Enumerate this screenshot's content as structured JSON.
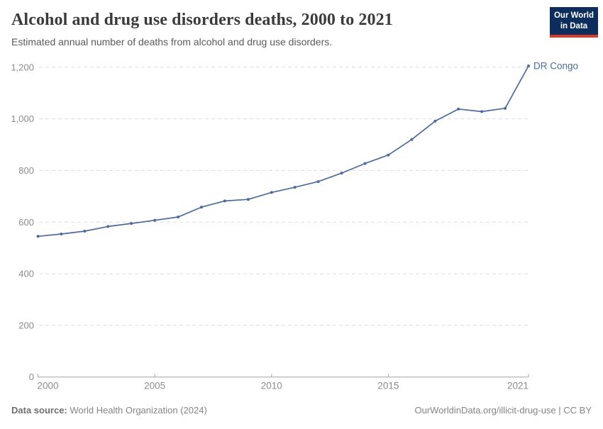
{
  "header": {
    "title": "Alcohol and drug use disorders deaths, 2000 to 2021",
    "subtitle": "Estimated annual number of deaths from alcohol and drug use disorders."
  },
  "logo": {
    "line1": "Our World",
    "line2": "in Data",
    "bg_color": "#0d2e5c",
    "bar_color": "#d93b2b"
  },
  "chart_data": {
    "type": "line",
    "title": "Alcohol and drug use disorders deaths, 2000 to 2021",
    "xlabel": "",
    "ylabel": "",
    "x": [
      2000,
      2001,
      2002,
      2003,
      2004,
      2005,
      2006,
      2007,
      2008,
      2009,
      2010,
      2011,
      2012,
      2013,
      2014,
      2015,
      2016,
      2017,
      2018,
      2019,
      2020,
      2021
    ],
    "series": [
      {
        "name": "DR Congo",
        "color": "#4C6A9C",
        "values": [
          545,
          554,
          565,
          583,
          595,
          607,
          620,
          658,
          682,
          688,
          715,
          735,
          757,
          790,
          827,
          860,
          920,
          991,
          1038,
          1028,
          1041,
          1205
        ]
      }
    ],
    "xlim": [
      2000,
      2021
    ],
    "ylim": [
      0,
      1200
    ],
    "x_ticks": [
      2000,
      2005,
      2010,
      2015,
      2021
    ],
    "y_ticks": [
      0,
      200,
      400,
      600,
      800,
      1000,
      1200
    ],
    "grid": "dashed-horizontal",
    "legend_position": "end-of-line-label",
    "colors": {
      "gridline": "#dcdcdc",
      "axis_line": "#a5a5a5",
      "tick_label": "#8c8c8c"
    }
  },
  "footer": {
    "data_source_label": "Data source:",
    "data_source_value": "World Health Organization (2024)",
    "url": "OurWorldinData.org/illicit-drug-use",
    "separator": " | ",
    "license": "CC BY"
  }
}
